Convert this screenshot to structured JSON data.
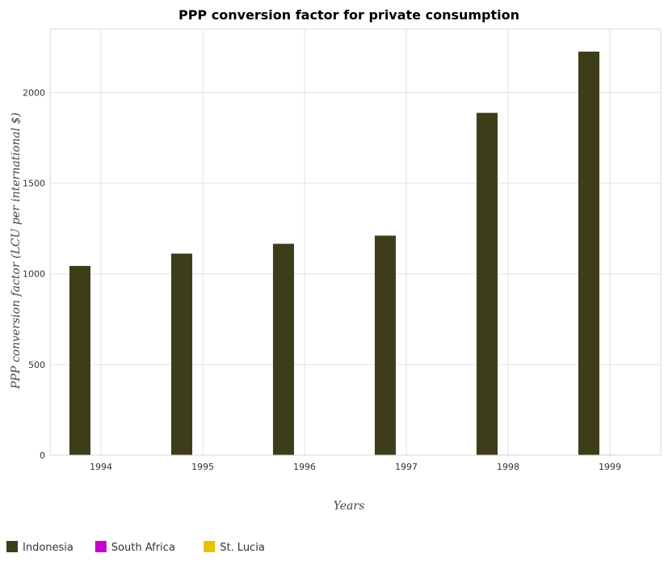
{
  "chart_data": {
    "type": "bar",
    "title": "PPP conversion factor for private consumption",
    "xlabel": "Years",
    "ylabel": "PPP conversion factor (LCU per international $)",
    "categories": [
      "1994",
      "1995",
      "1996",
      "1997",
      "1998",
      "1999"
    ],
    "series": [
      {
        "name": "Indonesia",
        "color": "#3d3d1a",
        "values": [
          1044,
          1112,
          1166,
          1211,
          1888,
          2226
        ]
      },
      {
        "name": "South Africa",
        "color": "#cc00cc",
        "values": [
          1.9,
          2.1,
          2.2,
          2.4,
          2.5,
          2.6
        ]
      },
      {
        "name": "St. Lucia",
        "color": "#e6c200",
        "values": [
          1.6,
          1.6,
          1.6,
          1.6,
          1.6,
          1.6
        ]
      }
    ],
    "ylim": [
      0,
      2350
    ],
    "yticks": [
      0,
      500,
      1000,
      1500,
      2000
    ],
    "grid": true,
    "legend": "bottom-left"
  }
}
